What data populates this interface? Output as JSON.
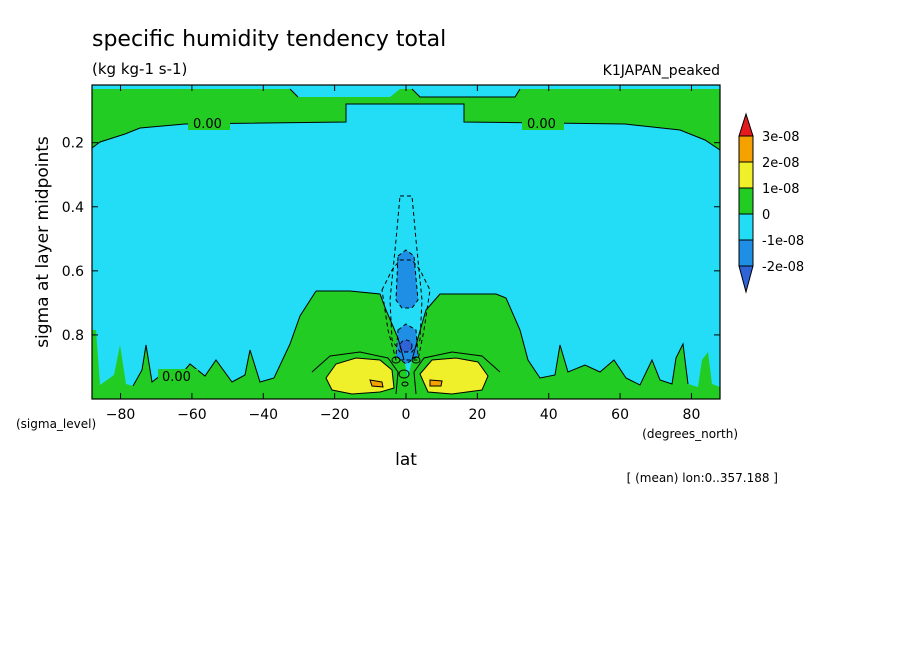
{
  "chart_data": {
    "type": "heatmap",
    "title": "specific humidity tendency total",
    "subtitle": "(kg kg-1 s-1)",
    "dataset": "K1JAPAN_peaked",
    "xlabel": "lat",
    "ylabel": "sigma at layer midpoints",
    "x_unit": "(degrees_north)",
    "y_unit": "(sigma_level)",
    "footnote": "[ (mean) lon:0..357.188 ]",
    "xlim": [
      -88,
      88
    ],
    "ylim": [
      1.0,
      0.02
    ],
    "x_ticks": [
      -80,
      -60,
      -40,
      -20,
      0,
      20,
      40,
      60,
      80
    ],
    "y_ticks": [
      0.2,
      0.4,
      0.6,
      0.8
    ],
    "contour_labels": [
      {
        "text": "0.00",
        "lat": -55,
        "sigma": 0.13
      },
      {
        "text": "0.00",
        "lat": 39,
        "sigma": 0.13
      },
      {
        "text": "0.00",
        "lat": -65,
        "sigma": 0.96
      }
    ],
    "colorbar": {
      "labels": [
        "3e-08",
        "2e-08",
        "1e-08",
        "0",
        "-1e-08",
        "-2e-08"
      ],
      "colors": [
        "#e6191c",
        "#f5a100",
        "#f0f02a",
        "#22cc22",
        "#22ddf5",
        "#1f8fe6",
        "#2f64d6"
      ]
    },
    "regions": [
      {
        "level": "0 to 1e-08",
        "color": "#22cc22",
        "description": "upper levels sigma<0.13 and lower troposphere sigma>0.65"
      },
      {
        "level": "-1e-08 to 0",
        "color": "#22ddf5",
        "description": "broad mid-troposphere"
      },
      {
        "level": "1e-08 to 2e-08",
        "color": "#f0f02a",
        "description": "near-surface maxima around lat ±10"
      },
      {
        "level": "-2e-08 to -1e-08",
        "color": "#1f8fe6",
        "description": "equatorial column sigma 0.55-0.9"
      }
    ]
  }
}
